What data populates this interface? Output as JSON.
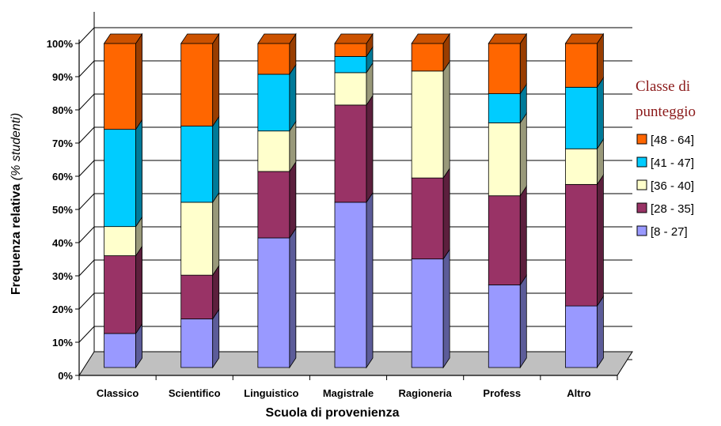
{
  "chart_data": {
    "type": "bar",
    "stacked": true,
    "three_d": true,
    "categories": [
      "Classico",
      "Scientifico",
      "Linguistico",
      "Magistrale",
      "Ragioneria",
      "Profess",
      "Altro"
    ],
    "series": [
      {
        "name": "[8 - 27]",
        "color": "#9999FF",
        "values": [
          10.5,
          15,
          40,
          51,
          33.5,
          25.5,
          19
        ]
      },
      {
        "name": "[28 - 35]",
        "color": "#993366",
        "values": [
          24,
          13.5,
          20.5,
          30,
          25,
          27.5,
          37.5
        ]
      },
      {
        "name": "[36 - 40]",
        "color": "#FFFFCC",
        "values": [
          9,
          22.5,
          12.5,
          10,
          33,
          22.5,
          11
        ]
      },
      {
        "name": "[41 - 47]",
        "color": "#00CCFF",
        "values": [
          30,
          23.5,
          17.5,
          5,
          0,
          9,
          19
        ]
      },
      {
        "name": "[48 - 64]",
        "color": "#FF6600",
        "values": [
          26.5,
          25.5,
          9.5,
          4,
          8.5,
          15.5,
          13.5
        ]
      }
    ],
    "yticks": [
      "0%",
      "10%",
      "20%",
      "30%",
      "40%",
      "50%",
      "60%",
      "70%",
      "80%",
      "90%",
      "100%"
    ],
    "ylim": [
      0,
      100
    ],
    "xlabel": "Scuola di provenienza",
    "ylabel_main": "Frequenza relativa ",
    "ylabel_italic": "(% studenti)",
    "legend_title_lines": [
      "Classe di",
      "punteggio"
    ],
    "legend_position": "right",
    "grid": true
  }
}
